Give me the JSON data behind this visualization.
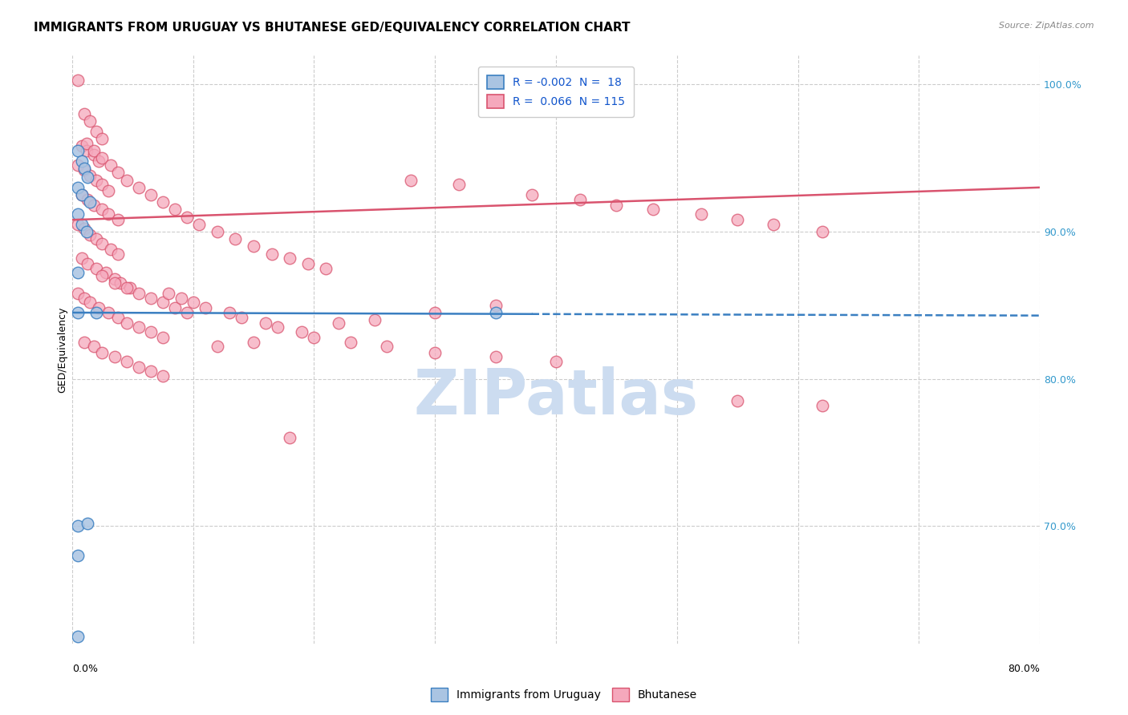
{
  "title": "IMMIGRANTS FROM URUGUAY VS BHUTANESE GED/EQUIVALENCY CORRELATION CHART",
  "source": "Source: ZipAtlas.com",
  "ylabel": "GED/Equivalency",
  "right_yticks": [
    100.0,
    90.0,
    80.0,
    70.0
  ],
  "xmin": 0.0,
  "xmax": 0.8,
  "ymin": 0.62,
  "ymax": 1.02,
  "legend_label1": "Immigrants from Uruguay",
  "legend_label2": "Bhutanese",
  "R_uruguay": -0.002,
  "N_uruguay": 18,
  "R_bhutanese": 0.066,
  "N_bhutanese": 115,
  "blue_color": "#aac4e2",
  "pink_color": "#f5a8bc",
  "blue_line_color": "#3a7fc1",
  "pink_line_color": "#d9536e",
  "blue_trend": [
    0.845,
    0.843
  ],
  "pink_trend": [
    0.908,
    0.93
  ],
  "blue_trend_dashed_from": 0.38,
  "watermark_color": "#ccdcf0",
  "title_fontsize": 11,
  "axis_label_fontsize": 9,
  "tick_fontsize": 9,
  "legend_fontsize": 10,
  "blue_scatter": [
    [
      0.005,
      0.955
    ],
    [
      0.008,
      0.948
    ],
    [
      0.01,
      0.943
    ],
    [
      0.013,
      0.937
    ],
    [
      0.005,
      0.93
    ],
    [
      0.008,
      0.925
    ],
    [
      0.015,
      0.92
    ],
    [
      0.005,
      0.912
    ],
    [
      0.008,
      0.905
    ],
    [
      0.012,
      0.9
    ],
    [
      0.005,
      0.872
    ],
    [
      0.005,
      0.845
    ],
    [
      0.005,
      0.7
    ],
    [
      0.013,
      0.702
    ],
    [
      0.005,
      0.68
    ],
    [
      0.02,
      0.845
    ],
    [
      0.005,
      0.625
    ],
    [
      0.35,
      0.845
    ]
  ],
  "pink_scatter": [
    [
      0.005,
      1.003
    ],
    [
      0.01,
      0.98
    ],
    [
      0.015,
      0.975
    ],
    [
      0.02,
      0.968
    ],
    [
      0.025,
      0.963
    ],
    [
      0.008,
      0.958
    ],
    [
      0.012,
      0.955
    ],
    [
      0.018,
      0.952
    ],
    [
      0.022,
      0.948
    ],
    [
      0.005,
      0.945
    ],
    [
      0.01,
      0.942
    ],
    [
      0.015,
      0.938
    ],
    [
      0.02,
      0.935
    ],
    [
      0.025,
      0.932
    ],
    [
      0.03,
      0.928
    ],
    [
      0.008,
      0.925
    ],
    [
      0.013,
      0.922
    ],
    [
      0.018,
      0.918
    ],
    [
      0.025,
      0.915
    ],
    [
      0.03,
      0.912
    ],
    [
      0.038,
      0.908
    ],
    [
      0.005,
      0.905
    ],
    [
      0.01,
      0.902
    ],
    [
      0.015,
      0.898
    ],
    [
      0.02,
      0.895
    ],
    [
      0.025,
      0.892
    ],
    [
      0.032,
      0.888
    ],
    [
      0.038,
      0.885
    ],
    [
      0.008,
      0.882
    ],
    [
      0.013,
      0.878
    ],
    [
      0.02,
      0.875
    ],
    [
      0.028,
      0.872
    ],
    [
      0.035,
      0.868
    ],
    [
      0.04,
      0.865
    ],
    [
      0.048,
      0.862
    ],
    [
      0.005,
      0.858
    ],
    [
      0.01,
      0.855
    ],
    [
      0.015,
      0.852
    ],
    [
      0.022,
      0.848
    ],
    [
      0.03,
      0.845
    ],
    [
      0.038,
      0.842
    ],
    [
      0.045,
      0.838
    ],
    [
      0.055,
      0.835
    ],
    [
      0.065,
      0.832
    ],
    [
      0.075,
      0.828
    ],
    [
      0.01,
      0.825
    ],
    [
      0.018,
      0.822
    ],
    [
      0.025,
      0.818
    ],
    [
      0.035,
      0.815
    ],
    [
      0.045,
      0.812
    ],
    [
      0.055,
      0.808
    ],
    [
      0.065,
      0.805
    ],
    [
      0.075,
      0.802
    ],
    [
      0.012,
      0.96
    ],
    [
      0.018,
      0.955
    ],
    [
      0.025,
      0.95
    ],
    [
      0.032,
      0.945
    ],
    [
      0.038,
      0.94
    ],
    [
      0.045,
      0.935
    ],
    [
      0.055,
      0.93
    ],
    [
      0.065,
      0.925
    ],
    [
      0.075,
      0.92
    ],
    [
      0.085,
      0.915
    ],
    [
      0.095,
      0.91
    ],
    [
      0.105,
      0.905
    ],
    [
      0.12,
      0.9
    ],
    [
      0.135,
      0.895
    ],
    [
      0.15,
      0.89
    ],
    [
      0.165,
      0.885
    ],
    [
      0.18,
      0.882
    ],
    [
      0.195,
      0.878
    ],
    [
      0.21,
      0.875
    ],
    [
      0.025,
      0.87
    ],
    [
      0.035,
      0.865
    ],
    [
      0.045,
      0.862
    ],
    [
      0.055,
      0.858
    ],
    [
      0.065,
      0.855
    ],
    [
      0.075,
      0.852
    ],
    [
      0.085,
      0.848
    ],
    [
      0.095,
      0.845
    ],
    [
      0.28,
      0.935
    ],
    [
      0.32,
      0.932
    ],
    [
      0.38,
      0.925
    ],
    [
      0.42,
      0.922
    ],
    [
      0.45,
      0.918
    ],
    [
      0.48,
      0.915
    ],
    [
      0.52,
      0.912
    ],
    [
      0.55,
      0.908
    ],
    [
      0.58,
      0.905
    ],
    [
      0.62,
      0.9
    ],
    [
      0.55,
      0.785
    ],
    [
      0.62,
      0.782
    ],
    [
      0.18,
      0.76
    ],
    [
      0.35,
      0.85
    ],
    [
      0.3,
      0.845
    ],
    [
      0.25,
      0.84
    ],
    [
      0.22,
      0.838
    ],
    [
      0.15,
      0.825
    ],
    [
      0.12,
      0.822
    ],
    [
      0.08,
      0.858
    ],
    [
      0.09,
      0.855
    ],
    [
      0.1,
      0.852
    ],
    [
      0.11,
      0.848
    ],
    [
      0.13,
      0.845
    ],
    [
      0.14,
      0.842
    ],
    [
      0.16,
      0.838
    ],
    [
      0.17,
      0.835
    ],
    [
      0.19,
      0.832
    ],
    [
      0.2,
      0.828
    ],
    [
      0.23,
      0.825
    ],
    [
      0.26,
      0.822
    ],
    [
      0.3,
      0.818
    ],
    [
      0.35,
      0.815
    ],
    [
      0.4,
      0.812
    ]
  ]
}
